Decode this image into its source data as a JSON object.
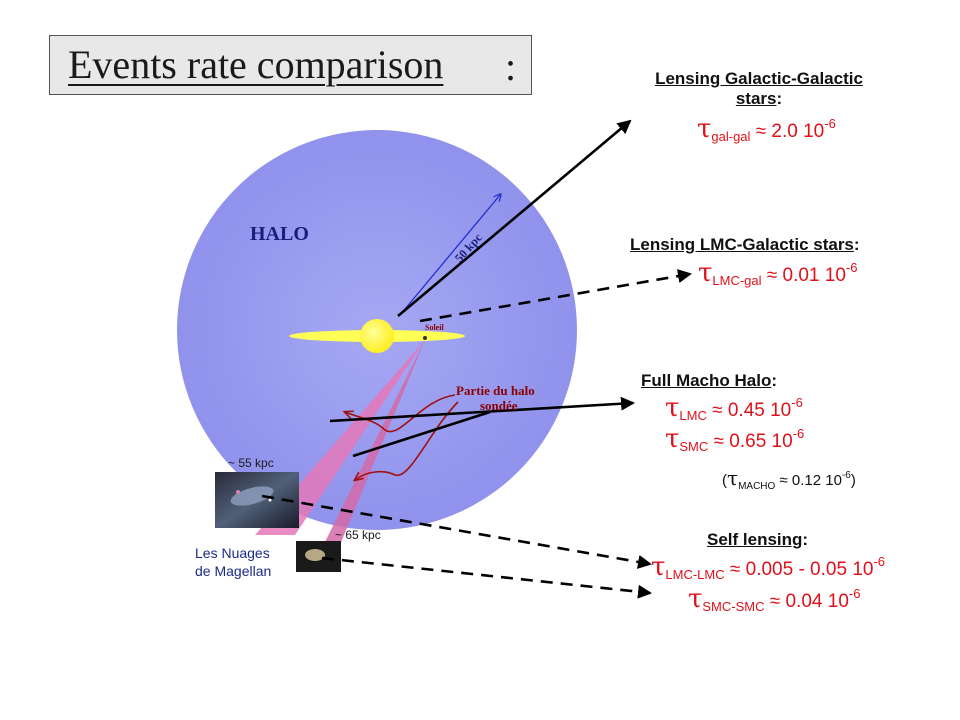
{
  "title": {
    "text": "Events rate comparison",
    "colon": ":"
  },
  "diagram": {
    "halo_label": "HALO",
    "radius_label": "50 kpc",
    "sun_label": "Soleil",
    "probed_label_line1": "Partie du halo",
    "probed_label_line2": "sondée",
    "lmc_distance": "~ 55 kpc",
    "smc_distance": "~ 65 kpc",
    "clouds_line1": "Les Nuages",
    "clouds_line2": "de Magellan"
  },
  "panels": {
    "gal_gal": {
      "heading_line1": "Lensing Galactic-Galactic",
      "heading_line2": "stars",
      "sub": "gal-gal",
      "value": "2.0 10",
      "exp": "-6"
    },
    "lmc_gal": {
      "heading": "Lensing LMC-Galactic stars",
      "sub": "LMC-gal",
      "value": "0.01 10",
      "exp": "-6"
    },
    "macho_halo": {
      "heading": "Full Macho Halo",
      "lmc_sub": "LMC",
      "lmc_value": "0.45 10",
      "lmc_exp": "-6",
      "smc_sub": "SMC",
      "smc_value": "0.65 10",
      "smc_exp": "-6",
      "macho_sub": "MACHO",
      "macho_value": "0.12 10",
      "macho_exp": "-6"
    },
    "self_lensing": {
      "heading": "Self lensing",
      "lmc_sub": "LMC-LMC",
      "lmc_value": "0.005 - 0.05 10",
      "lmc_exp": "-6",
      "smc_sub": "SMC-SMC",
      "smc_value": "0.04 10",
      "smc_exp": "-6"
    }
  },
  "symbols": {
    "tau": "τ",
    "approx": "≈"
  },
  "colors": {
    "halo": "#9b9cf0",
    "formula": "#e0101a",
    "disk": "#ffff55",
    "cone": "#e06fb0",
    "curved_arrow": "#a01010",
    "radius_arrow": "#2030d0"
  }
}
